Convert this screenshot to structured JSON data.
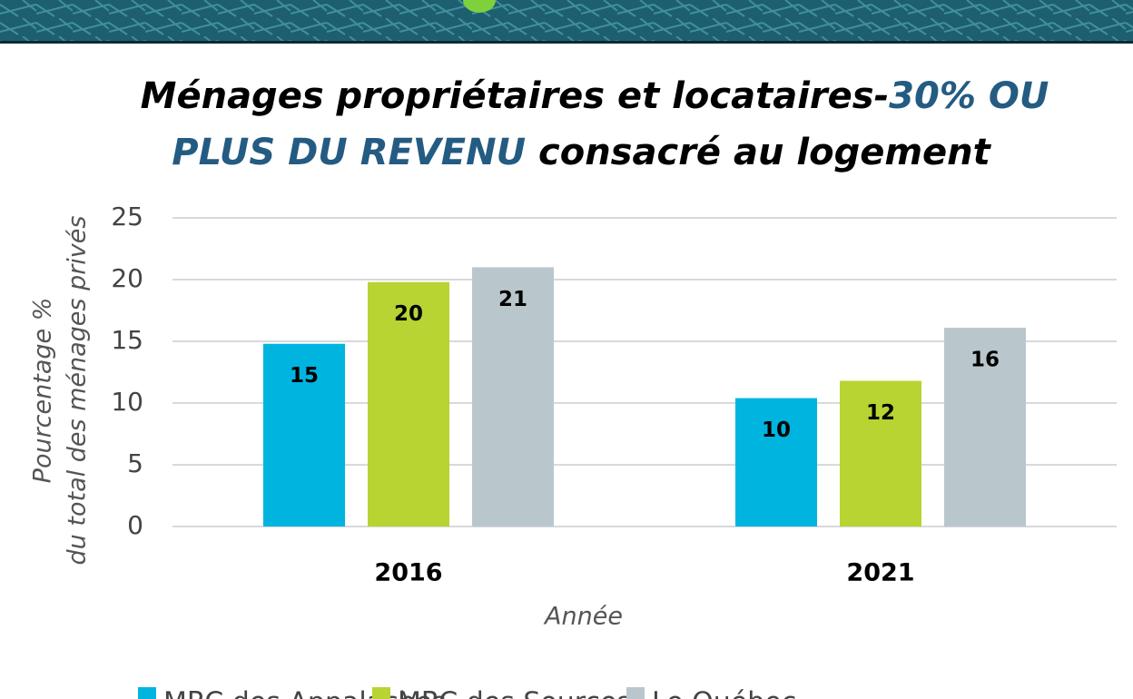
{
  "chart_data": {
    "type": "bar",
    "title": [
      "Ménages propriétaires et locataires-",
      "30% OU",
      "PLUS DU REVENU",
      "consacré au logement"
    ],
    "y_label": [
      "Pourcentage %",
      "du total des ménages privés"
    ],
    "x_label": "Année",
    "categories": [
      "2016",
      "2021"
    ],
    "series": [
      {
        "name": "MRC des Appalaches",
        "color": "#00b4e0",
        "values": [
          14.8,
          10.4
        ],
        "value_labels": [
          "15",
          "10"
        ]
      },
      {
        "name": "MRC des Sources",
        "color": "#b7d432",
        "values": [
          19.8,
          11.8
        ],
        "value_labels": [
          "20",
          "12"
        ]
      },
      {
        "name": "Le Québec",
        "color": "#b9c7cd",
        "values": [
          21,
          16.1
        ],
        "value_labels": [
          "21",
          "16"
        ]
      }
    ],
    "ylim": [
      0,
      25
    ],
    "yticks": [
      0,
      5,
      10,
      15,
      20,
      25
    ],
    "grid": true
  }
}
